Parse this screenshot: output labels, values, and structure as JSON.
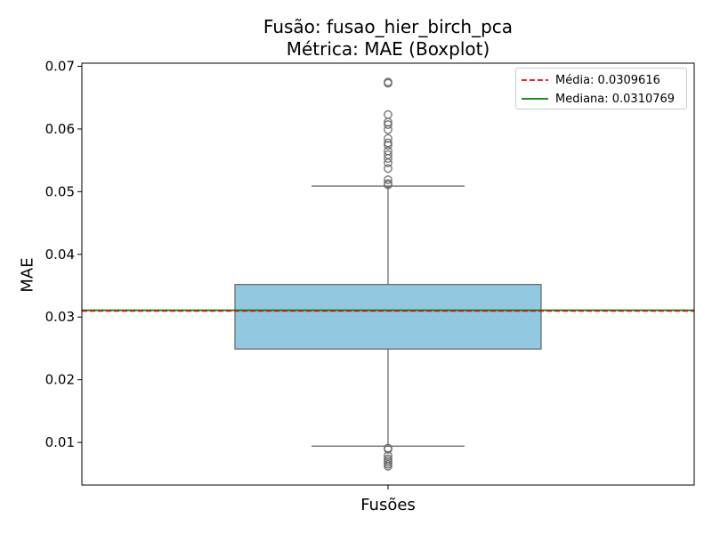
{
  "chart_data": {
    "type": "boxplot",
    "title": "Fusão: fusao_hier_birch_pca",
    "subtitle": "Métrica: MAE (Boxplot)",
    "xlabel": "Fusões",
    "ylabel": "MAE",
    "ylim": [
      0.0032,
      0.0705
    ],
    "yticks": [
      0.01,
      0.02,
      0.03,
      0.04,
      0.05,
      0.06,
      0.07
    ],
    "ytick_labels": [
      "0.01",
      "0.02",
      "0.03",
      "0.04",
      "0.05",
      "0.06",
      "0.07"
    ],
    "grid": false,
    "box": {
      "q1": 0.0249,
      "q3": 0.0352,
      "median": 0.0311,
      "whisker_low": 0.0094,
      "whisker_high": 0.0509,
      "color": "#92c9e0",
      "outliers": [
        0.0675,
        0.0673,
        0.0623,
        0.0611,
        0.0607,
        0.0599,
        0.0585,
        0.0578,
        0.0574,
        0.0565,
        0.0559,
        0.0553,
        0.0546,
        0.0537,
        0.0519,
        0.0513,
        0.0511,
        0.0091,
        0.0089,
        0.0079,
        0.0074,
        0.0071,
        0.0068,
        0.0065,
        0.0062
      ]
    },
    "mean_line": {
      "value": 0.0309616,
      "color": "#ff0000",
      "style": "dashed",
      "label": "Média: 0.0309616"
    },
    "median_line": {
      "value": 0.0310769,
      "color": "#008000",
      "style": "solid",
      "label": "Mediana: 0.0310769"
    },
    "legend_position": "upper-right"
  }
}
